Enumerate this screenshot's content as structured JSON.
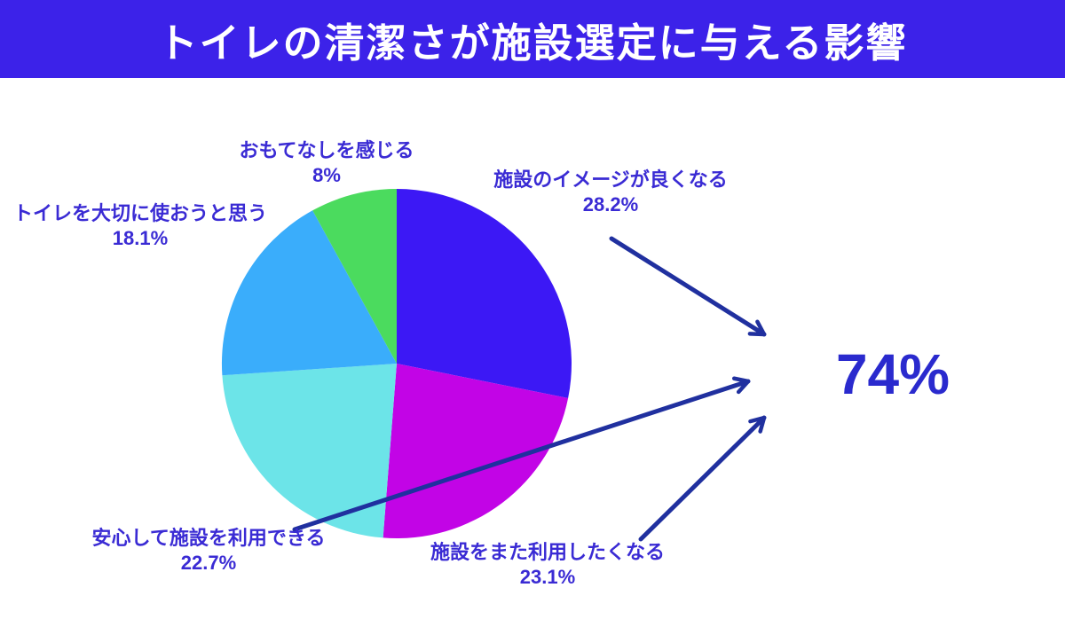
{
  "header": {
    "title": "トイレの清潔さが施設選定に与える影響",
    "bg_color": "#3c22e9",
    "text_color": "#ffffff"
  },
  "chart_data": {
    "type": "pie",
    "title": "トイレの清潔さが施設選定に与える影響",
    "start_angle_deg": 0,
    "direction": "clockwise",
    "legend_position": "none",
    "background": "#ffffff",
    "label_color": "#3a2bd4",
    "arrow_color": "#20309f",
    "slices": [
      {
        "label": "施設のイメージが良くなる",
        "value": 28.2,
        "value_label": "28.2%",
        "color": "#3c18f5"
      },
      {
        "label": "施設をまた利用したくなる",
        "value": 23.1,
        "value_label": "23.1%",
        "color": "#c204e6"
      },
      {
        "label": "安心して施設を利用できる",
        "value": 22.7,
        "value_label": "22.7%",
        "color": "#6ce4e8"
      },
      {
        "label": "トイレを大切に使おうと思う",
        "value": 18.1,
        "value_label": "18.1%",
        "color": "#3aadfb"
      },
      {
        "label": "おもてなしを感じる",
        "value": 8,
        "value_label": "8%",
        "color": "#4bdb5e"
      }
    ],
    "annotation": {
      "text": "74%",
      "color": "#2a2ace"
    }
  }
}
